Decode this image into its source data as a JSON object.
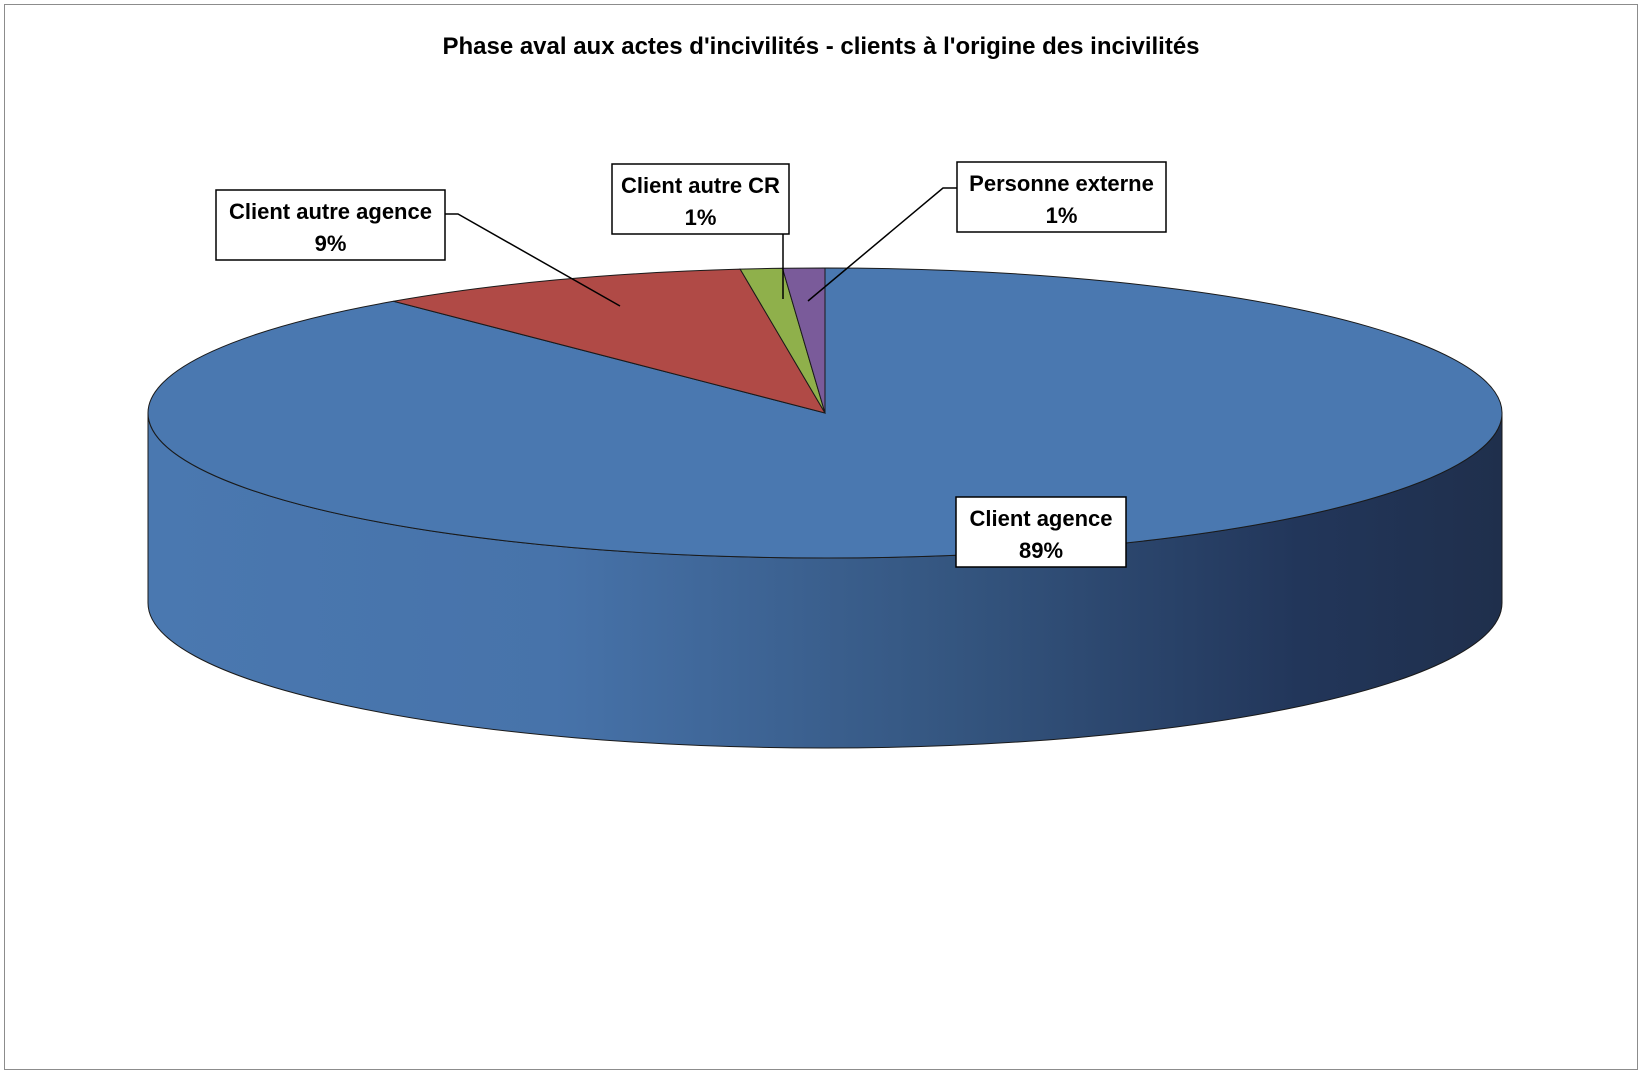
{
  "chart_data": {
    "type": "pie",
    "title": "Phase aval aux actes d'incivilités - clients à l'origine des incivilités",
    "three_d": true,
    "legend": "none",
    "slices": [
      {
        "label": "Client  agence",
        "value": 89,
        "display": "89%",
        "color": "#4a78b0"
      },
      {
        "label": "Client autre agence",
        "value": 9,
        "display": "9%",
        "color": "#b04a46"
      },
      {
        "label": "Client autre CR",
        "value": 1,
        "display": "1%",
        "color": "#8fb04b"
      },
      {
        "label": "Personne externe",
        "value": 1,
        "display": "1%",
        "color": "#7a5b9a"
      }
    ]
  }
}
